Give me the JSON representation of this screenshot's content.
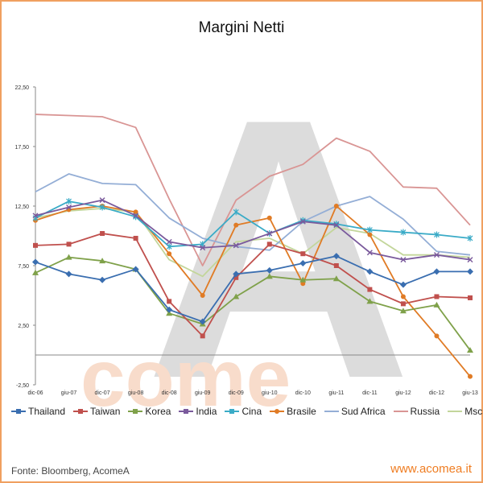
{
  "chart_data": {
    "type": "line",
    "title": "Margini Netti",
    "categories": [
      "dic-06",
      "giu-07",
      "dic-07",
      "giu-08",
      "dic-08",
      "giu-09",
      "dic-09",
      "giu-10",
      "dic-10",
      "giu-11",
      "dic-11",
      "giu-12",
      "dic-12",
      "giu-13"
    ],
    "ylim": [
      -2.5,
      22.5
    ],
    "y_ticks": [
      "22,50",
      "17,50",
      "12,50",
      "7,50",
      "2,50",
      "-2,50"
    ],
    "grid": false,
    "legend_position": "bottom",
    "series": [
      {
        "name": "Thailand",
        "color": "#3a6eb0",
        "marker": "diamond",
        "values": [
          7.8,
          6.8,
          6.3,
          7.2,
          3.8,
          2.8,
          6.8,
          7.1,
          7.7,
          8.3,
          7,
          5.9,
          7,
          7
        ]
      },
      {
        "name": "Taiwan",
        "color": "#c0504d",
        "marker": "square",
        "values": [
          9.2,
          9.3,
          10.2,
          9.8,
          4.5,
          1.6,
          6.5,
          9.3,
          8.5,
          7.5,
          5.5,
          4.3,
          4.9,
          4.8
        ]
      },
      {
        "name": "Korea",
        "color": "#7fa14a",
        "marker": "triangle",
        "values": [
          6.9,
          8.2,
          7.9,
          7.2,
          3.5,
          2.6,
          4.9,
          6.6,
          6.3,
          6.4,
          4.5,
          3.7,
          4.2,
          0.4
        ]
      },
      {
        "name": "India",
        "color": "#7a5a9c",
        "marker": "x",
        "values": [
          11.7,
          12.4,
          13,
          11.7,
          9.5,
          9,
          9.2,
          10.2,
          11.2,
          10.9,
          8.6,
          8,
          8.4,
          8
        ]
      },
      {
        "name": "Cina",
        "color": "#3aabc7",
        "marker": "star",
        "values": [
          11.5,
          12.9,
          12.4,
          11.6,
          9.1,
          9.3,
          12,
          10.2,
          11.3,
          11,
          10.5,
          10.3,
          10.1,
          9.8
        ]
      },
      {
        "name": "Brasile",
        "color": "#e07b25",
        "marker": "circle",
        "values": [
          11.3,
          12.2,
          12.5,
          12,
          8.5,
          5,
          10.9,
          11.5,
          6,
          12.5,
          10.1,
          4.9,
          1.6,
          -1.8
        ]
      },
      {
        "name": "Sud Africa",
        "color": "#94aed6",
        "marker": "none",
        "values": [
          13.7,
          15.2,
          14.4,
          14.3,
          11.5,
          9.8,
          9.1,
          8.8,
          11.2,
          12.5,
          13.3,
          11.4,
          8.7,
          8.4
        ]
      },
      {
        "name": "Russia",
        "color": "#d99594",
        "marker": "none",
        "values": [
          20.2,
          20.1,
          20,
          19.1,
          13.1,
          7.5,
          13,
          15,
          16,
          18.2,
          17.1,
          14.1,
          14,
          10.9
        ]
      },
      {
        "name": "Msci Em",
        "color": "#c3d69b",
        "marker": "none",
        "values": [
          11.5,
          12.1,
          12.3,
          12,
          8,
          6.6,
          9.5,
          9.8,
          8.5,
          10.7,
          10.2,
          8.4,
          8.4,
          8.2
        ]
      }
    ]
  },
  "footer": {
    "source": "Fonte: Bloomberg, AcomeA",
    "url": "www.acomea.it"
  },
  "watermark": {
    "letter": "A",
    "word": "come"
  }
}
